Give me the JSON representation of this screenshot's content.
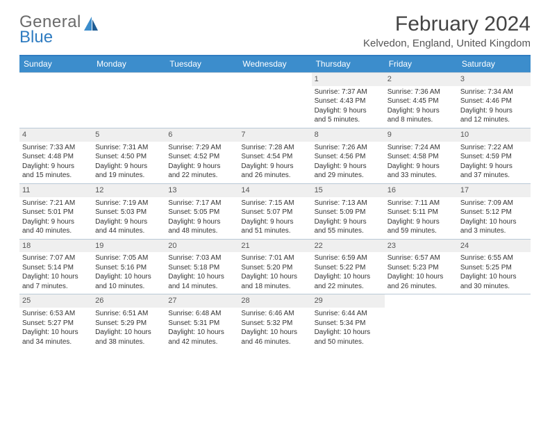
{
  "logo": {
    "line1": "General",
    "line2": "Blue"
  },
  "title": "February 2024",
  "location": "Kelvedon, England, United Kingdom",
  "colors": {
    "header_bar": "#3c8dcc",
    "header_border_top": "#2f7cc1",
    "row_border": "#b9c8d6",
    "daynum_bg": "#efefef",
    "text": "#333333",
    "logo_gray": "#6a6a6a",
    "logo_blue": "#2f7cc1"
  },
  "weekdays": [
    "Sunday",
    "Monday",
    "Tuesday",
    "Wednesday",
    "Thursday",
    "Friday",
    "Saturday"
  ],
  "weeks": [
    [
      {
        "empty": true
      },
      {
        "empty": true
      },
      {
        "empty": true
      },
      {
        "empty": true
      },
      {
        "num": "1",
        "sunrise": "Sunrise: 7:37 AM",
        "sunset": "Sunset: 4:43 PM",
        "day1": "Daylight: 9 hours",
        "day2": "and 5 minutes."
      },
      {
        "num": "2",
        "sunrise": "Sunrise: 7:36 AM",
        "sunset": "Sunset: 4:45 PM",
        "day1": "Daylight: 9 hours",
        "day2": "and 8 minutes."
      },
      {
        "num": "3",
        "sunrise": "Sunrise: 7:34 AM",
        "sunset": "Sunset: 4:46 PM",
        "day1": "Daylight: 9 hours",
        "day2": "and 12 minutes."
      }
    ],
    [
      {
        "num": "4",
        "sunrise": "Sunrise: 7:33 AM",
        "sunset": "Sunset: 4:48 PM",
        "day1": "Daylight: 9 hours",
        "day2": "and 15 minutes."
      },
      {
        "num": "5",
        "sunrise": "Sunrise: 7:31 AM",
        "sunset": "Sunset: 4:50 PM",
        "day1": "Daylight: 9 hours",
        "day2": "and 19 minutes."
      },
      {
        "num": "6",
        "sunrise": "Sunrise: 7:29 AM",
        "sunset": "Sunset: 4:52 PM",
        "day1": "Daylight: 9 hours",
        "day2": "and 22 minutes."
      },
      {
        "num": "7",
        "sunrise": "Sunrise: 7:28 AM",
        "sunset": "Sunset: 4:54 PM",
        "day1": "Daylight: 9 hours",
        "day2": "and 26 minutes."
      },
      {
        "num": "8",
        "sunrise": "Sunrise: 7:26 AM",
        "sunset": "Sunset: 4:56 PM",
        "day1": "Daylight: 9 hours",
        "day2": "and 29 minutes."
      },
      {
        "num": "9",
        "sunrise": "Sunrise: 7:24 AM",
        "sunset": "Sunset: 4:58 PM",
        "day1": "Daylight: 9 hours",
        "day2": "and 33 minutes."
      },
      {
        "num": "10",
        "sunrise": "Sunrise: 7:22 AM",
        "sunset": "Sunset: 4:59 PM",
        "day1": "Daylight: 9 hours",
        "day2": "and 37 minutes."
      }
    ],
    [
      {
        "num": "11",
        "sunrise": "Sunrise: 7:21 AM",
        "sunset": "Sunset: 5:01 PM",
        "day1": "Daylight: 9 hours",
        "day2": "and 40 minutes."
      },
      {
        "num": "12",
        "sunrise": "Sunrise: 7:19 AM",
        "sunset": "Sunset: 5:03 PM",
        "day1": "Daylight: 9 hours",
        "day2": "and 44 minutes."
      },
      {
        "num": "13",
        "sunrise": "Sunrise: 7:17 AM",
        "sunset": "Sunset: 5:05 PM",
        "day1": "Daylight: 9 hours",
        "day2": "and 48 minutes."
      },
      {
        "num": "14",
        "sunrise": "Sunrise: 7:15 AM",
        "sunset": "Sunset: 5:07 PM",
        "day1": "Daylight: 9 hours",
        "day2": "and 51 minutes."
      },
      {
        "num": "15",
        "sunrise": "Sunrise: 7:13 AM",
        "sunset": "Sunset: 5:09 PM",
        "day1": "Daylight: 9 hours",
        "day2": "and 55 minutes."
      },
      {
        "num": "16",
        "sunrise": "Sunrise: 7:11 AM",
        "sunset": "Sunset: 5:11 PM",
        "day1": "Daylight: 9 hours",
        "day2": "and 59 minutes."
      },
      {
        "num": "17",
        "sunrise": "Sunrise: 7:09 AM",
        "sunset": "Sunset: 5:12 PM",
        "day1": "Daylight: 10 hours",
        "day2": "and 3 minutes."
      }
    ],
    [
      {
        "num": "18",
        "sunrise": "Sunrise: 7:07 AM",
        "sunset": "Sunset: 5:14 PM",
        "day1": "Daylight: 10 hours",
        "day2": "and 7 minutes."
      },
      {
        "num": "19",
        "sunrise": "Sunrise: 7:05 AM",
        "sunset": "Sunset: 5:16 PM",
        "day1": "Daylight: 10 hours",
        "day2": "and 10 minutes."
      },
      {
        "num": "20",
        "sunrise": "Sunrise: 7:03 AM",
        "sunset": "Sunset: 5:18 PM",
        "day1": "Daylight: 10 hours",
        "day2": "and 14 minutes."
      },
      {
        "num": "21",
        "sunrise": "Sunrise: 7:01 AM",
        "sunset": "Sunset: 5:20 PM",
        "day1": "Daylight: 10 hours",
        "day2": "and 18 minutes."
      },
      {
        "num": "22",
        "sunrise": "Sunrise: 6:59 AM",
        "sunset": "Sunset: 5:22 PM",
        "day1": "Daylight: 10 hours",
        "day2": "and 22 minutes."
      },
      {
        "num": "23",
        "sunrise": "Sunrise: 6:57 AM",
        "sunset": "Sunset: 5:23 PM",
        "day1": "Daylight: 10 hours",
        "day2": "and 26 minutes."
      },
      {
        "num": "24",
        "sunrise": "Sunrise: 6:55 AM",
        "sunset": "Sunset: 5:25 PM",
        "day1": "Daylight: 10 hours",
        "day2": "and 30 minutes."
      }
    ],
    [
      {
        "num": "25",
        "sunrise": "Sunrise: 6:53 AM",
        "sunset": "Sunset: 5:27 PM",
        "day1": "Daylight: 10 hours",
        "day2": "and 34 minutes."
      },
      {
        "num": "26",
        "sunrise": "Sunrise: 6:51 AM",
        "sunset": "Sunset: 5:29 PM",
        "day1": "Daylight: 10 hours",
        "day2": "and 38 minutes."
      },
      {
        "num": "27",
        "sunrise": "Sunrise: 6:48 AM",
        "sunset": "Sunset: 5:31 PM",
        "day1": "Daylight: 10 hours",
        "day2": "and 42 minutes."
      },
      {
        "num": "28",
        "sunrise": "Sunrise: 6:46 AM",
        "sunset": "Sunset: 5:32 PM",
        "day1": "Daylight: 10 hours",
        "day2": "and 46 minutes."
      },
      {
        "num": "29",
        "sunrise": "Sunrise: 6:44 AM",
        "sunset": "Sunset: 5:34 PM",
        "day1": "Daylight: 10 hours",
        "day2": "and 50 minutes."
      },
      {
        "empty": true
      },
      {
        "empty": true
      }
    ]
  ]
}
